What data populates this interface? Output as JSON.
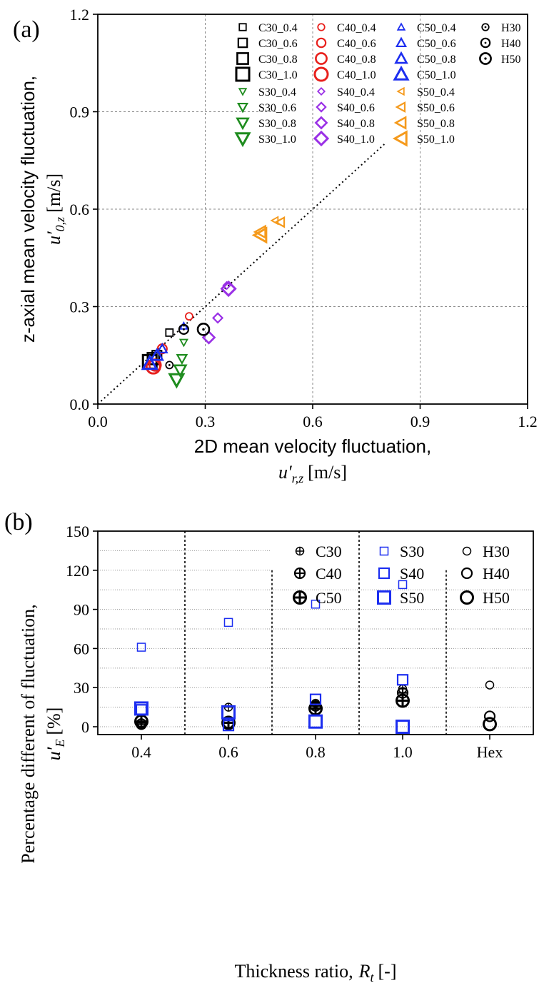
{
  "chart_data": [
    {
      "type": "scatter",
      "panel_label": "(a)",
      "xlabel": "2D mean velocity fluctuation,",
      "xlabel_sym": "u′",
      "xlabel_sub": "r,z",
      "xlabel_unit": "[m/s]",
      "ylabel": "z-axial mean velocity fluctuation,",
      "ylabel_sym": "u′",
      "ylabel_sub": "0,z",
      "ylabel_unit": "[m/s]",
      "xlim": [
        0.0,
        1.2
      ],
      "ylim": [
        0.0,
        1.2
      ],
      "xticks": [
        "0.0",
        "0.3",
        "0.6",
        "0.9",
        "1.2"
      ],
      "yticks": [
        "0.0",
        "0.3",
        "0.6",
        "0.9",
        "1.2"
      ],
      "reference_line": [
        [
          0,
          0
        ],
        [
          0.8,
          0.8
        ]
      ],
      "series": [
        {
          "name": "C30_0.4",
          "marker": "square",
          "color": "#000000",
          "size": 1,
          "points": [
            [
              0.2,
              0.22
            ]
          ]
        },
        {
          "name": "C30_0.6",
          "marker": "square",
          "color": "#000000",
          "size": 2,
          "points": [
            [
              0.165,
              0.15
            ]
          ]
        },
        {
          "name": "C30_0.8",
          "marker": "square",
          "color": "#000000",
          "size": 3,
          "points": [
            [
              0.155,
              0.14
            ]
          ]
        },
        {
          "name": "C30_1.0",
          "marker": "square",
          "color": "#000000",
          "size": 4,
          "points": [
            [
              0.145,
              0.13
            ]
          ]
        },
        {
          "name": "C40_0.4",
          "marker": "circle",
          "color": "#e8201c",
          "size": 1,
          "points": [
            [
              0.255,
              0.27
            ]
          ]
        },
        {
          "name": "C40_0.6",
          "marker": "circle",
          "color": "#e8201c",
          "size": 2,
          "points": [
            [
              0.18,
              0.17
            ]
          ]
        },
        {
          "name": "C40_0.8",
          "marker": "circle",
          "color": "#e8201c",
          "size": 3,
          "points": [
            [
              0.16,
              0.12
            ]
          ]
        },
        {
          "name": "C40_1.0",
          "marker": "circle",
          "color": "#e8201c",
          "size": 4,
          "points": [
            [
              0.155,
              0.115
            ]
          ]
        },
        {
          "name": "C50_0.4",
          "marker": "triangle-up",
          "color": "#1c2ef0",
          "size": 1,
          "points": [
            [
              0.24,
              0.24
            ]
          ]
        },
        {
          "name": "C50_0.6",
          "marker": "triangle-up",
          "color": "#1c2ef0",
          "size": 2,
          "points": [
            [
              0.18,
              0.17
            ]
          ]
        },
        {
          "name": "C50_0.8",
          "marker": "triangle-up",
          "color": "#1c2ef0",
          "size": 3,
          "points": [
            [
              0.165,
              0.15
            ]
          ]
        },
        {
          "name": "C50_1.0",
          "marker": "triangle-up",
          "color": "#1c2ef0",
          "size": 4,
          "points": [
            [
              0.145,
              0.125
            ]
          ]
        },
        {
          "name": "S30_0.4",
          "marker": "triangle-down",
          "color": "#1e8c1e",
          "size": 1,
          "points": [
            [
              0.24,
              0.19
            ]
          ]
        },
        {
          "name": "S30_0.6",
          "marker": "triangle-down",
          "color": "#1e8c1e",
          "size": 2,
          "points": [
            [
              0.235,
              0.14
            ]
          ]
        },
        {
          "name": "S30_0.8",
          "marker": "triangle-down",
          "color": "#1e8c1e",
          "size": 3,
          "points": [
            [
              0.23,
              0.105
            ]
          ]
        },
        {
          "name": "S30_1.0",
          "marker": "triangle-down",
          "color": "#1e8c1e",
          "size": 4,
          "points": [
            [
              0.22,
              0.075
            ]
          ]
        },
        {
          "name": "S40_0.4",
          "marker": "diamond",
          "color": "#9a30e6",
          "size": 1,
          "points": [
            [
              0.36,
              0.365
            ]
          ]
        },
        {
          "name": "S40_0.6",
          "marker": "diamond",
          "color": "#9a30e6",
          "size": 2,
          "points": [
            [
              0.335,
              0.265
            ]
          ]
        },
        {
          "name": "S40_0.8",
          "marker": "diamond",
          "color": "#9a30e6",
          "size": 3,
          "points": [
            [
              0.31,
              0.205
            ]
          ]
        },
        {
          "name": "S40_1.0",
          "marker": "diamond",
          "color": "#9a30e6",
          "size": 4,
          "points": [
            [
              0.365,
              0.355
            ]
          ]
        },
        {
          "name": "S50_0.4",
          "marker": "triangle-left",
          "color": "#f59a1c",
          "size": 1,
          "points": [
            [
              0.495,
              0.565
            ]
          ]
        },
        {
          "name": "S50_0.6",
          "marker": "triangle-left",
          "color": "#f59a1c",
          "size": 2,
          "points": [
            [
              0.51,
              0.56
            ]
          ]
        },
        {
          "name": "S50_0.8",
          "marker": "triangle-left",
          "color": "#f59a1c",
          "size": 3,
          "points": [
            [
              0.455,
              0.53
            ]
          ]
        },
        {
          "name": "S50_1.0",
          "marker": "triangle-left",
          "color": "#f59a1c",
          "size": 4,
          "points": [
            [
              0.455,
              0.52
            ]
          ]
        },
        {
          "name": "H30",
          "marker": "circle-dot",
          "color": "#000000",
          "size": 1,
          "points": [
            [
              0.2,
              0.12
            ]
          ]
        },
        {
          "name": "H40",
          "marker": "circle-dot",
          "color": "#000000",
          "size": 2,
          "points": [
            [
              0.24,
              0.23
            ]
          ]
        },
        {
          "name": "H50",
          "marker": "circle-dot",
          "color": "#000000",
          "size": 3,
          "points": [
            [
              0.295,
              0.23
            ]
          ]
        }
      ]
    },
    {
      "type": "scatter",
      "panel_label": "(b)",
      "xlabel": "Thickness ratio,",
      "xlabel_sym": "R",
      "xlabel_sub": "t",
      "xlabel_unit": "[-]",
      "ylabel": "Percentage different of fluctuation,",
      "ylabel_sym": "u′",
      "ylabel_sub": "E",
      "ylabel_unit": "[%]",
      "categories": [
        "0.4",
        "0.6",
        "0.8",
        "1.0",
        "Hex"
      ],
      "ylim": [
        -6,
        150
      ],
      "yticks": [
        "0",
        "30",
        "60",
        "90",
        "120",
        "150"
      ],
      "series": [
        {
          "name": "C30",
          "marker": "circle-plus",
          "color": "#000000",
          "size": 1,
          "points": [
            [
              0,
              3
            ],
            [
              1,
              15
            ],
            [
              2,
              18
            ],
            [
              3,
              29
            ]
          ]
        },
        {
          "name": "C40",
          "marker": "circle-plus",
          "color": "#000000",
          "size": 2,
          "points": [
            [
              0,
              2
            ],
            [
              1,
              3
            ],
            [
              2,
              16
            ],
            [
              3,
              26
            ]
          ]
        },
        {
          "name": "C50",
          "marker": "circle-plus",
          "color": "#000000",
          "size": 3,
          "points": [
            [
              0,
              4
            ],
            [
              1,
              3
            ],
            [
              2,
              14
            ],
            [
              3,
              20
            ]
          ]
        },
        {
          "name": "S30",
          "marker": "square",
          "color": "#1c2ef0",
          "size": 1,
          "points": [
            [
              0,
              61
            ],
            [
              1,
              80
            ],
            [
              2,
              94
            ],
            [
              3,
              109
            ]
          ]
        },
        {
          "name": "S40",
          "marker": "square",
          "color": "#1c2ef0",
          "size": 2,
          "points": [
            [
              0,
              13
            ],
            [
              1,
              1
            ],
            [
              2,
              21
            ],
            [
              3,
              36
            ]
          ]
        },
        {
          "name": "S50",
          "marker": "square",
          "color": "#1c2ef0",
          "size": 3,
          "points": [
            [
              0,
              14
            ],
            [
              1,
              11
            ],
            [
              2,
              4
            ],
            [
              3,
              0
            ]
          ]
        },
        {
          "name": "H30",
          "marker": "circle",
          "color": "#000000",
          "size": 1,
          "points": [
            [
              4,
              32
            ]
          ]
        },
        {
          "name": "H40",
          "marker": "circle",
          "color": "#000000",
          "size": 2,
          "points": [
            [
              4,
              8
            ]
          ]
        },
        {
          "name": "H50",
          "marker": "circle",
          "color": "#000000",
          "size": 3,
          "points": [
            [
              4,
              2
            ]
          ]
        }
      ]
    }
  ]
}
